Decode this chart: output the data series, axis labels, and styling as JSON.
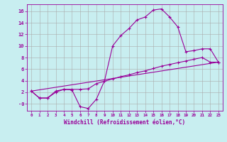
{
  "xlabel": "Windchill (Refroidissement éolien,°C)",
  "background_color": "#c8eef0",
  "line_color": "#990099",
  "grid_color": "#aaaaaa",
  "xlim": [
    -0.5,
    23.5
  ],
  "ylim": [
    -1.2,
    17.2
  ],
  "yticks": [
    0,
    2,
    4,
    6,
    8,
    10,
    12,
    14,
    16
  ],
  "ytick_labels": [
    "-0",
    "2",
    "4",
    "6",
    "8",
    "10",
    "12",
    "14",
    "16"
  ],
  "xticks": [
    0,
    1,
    2,
    3,
    4,
    5,
    6,
    7,
    8,
    9,
    10,
    11,
    12,
    13,
    14,
    15,
    16,
    17,
    18,
    19,
    20,
    21,
    22,
    23
  ],
  "line1_x": [
    0,
    1,
    2,
    3,
    4,
    5,
    6,
    7,
    8,
    9,
    10,
    11,
    12,
    13,
    14,
    15,
    16,
    17,
    18,
    19,
    20,
    21,
    22,
    23
  ],
  "line1_y": [
    2.2,
    1.0,
    1.0,
    2.2,
    2.5,
    2.4,
    -0.5,
    -0.8,
    0.8,
    4.0,
    10.0,
    11.8,
    13.0,
    14.5,
    15.0,
    16.2,
    16.4,
    15.0,
    13.3,
    9.0,
    9.2,
    9.5,
    9.5,
    7.2
  ],
  "line2_x": [
    0,
    1,
    2,
    3,
    4,
    5,
    6,
    7,
    8,
    9,
    10,
    11,
    12,
    13,
    14,
    15,
    16,
    17,
    18,
    19,
    20,
    21,
    22,
    23
  ],
  "line2_y": [
    2.2,
    1.0,
    1.0,
    2.0,
    2.5,
    2.5,
    2.5,
    2.6,
    3.5,
    3.9,
    4.3,
    4.7,
    5.0,
    5.4,
    5.7,
    6.1,
    6.5,
    6.8,
    7.1,
    7.4,
    7.7,
    8.0,
    7.2,
    7.2
  ],
  "line3_x": [
    0,
    23
  ],
  "line3_y": [
    2.2,
    7.2
  ],
  "figsize": [
    3.2,
    2.0
  ],
  "dpi": 100
}
